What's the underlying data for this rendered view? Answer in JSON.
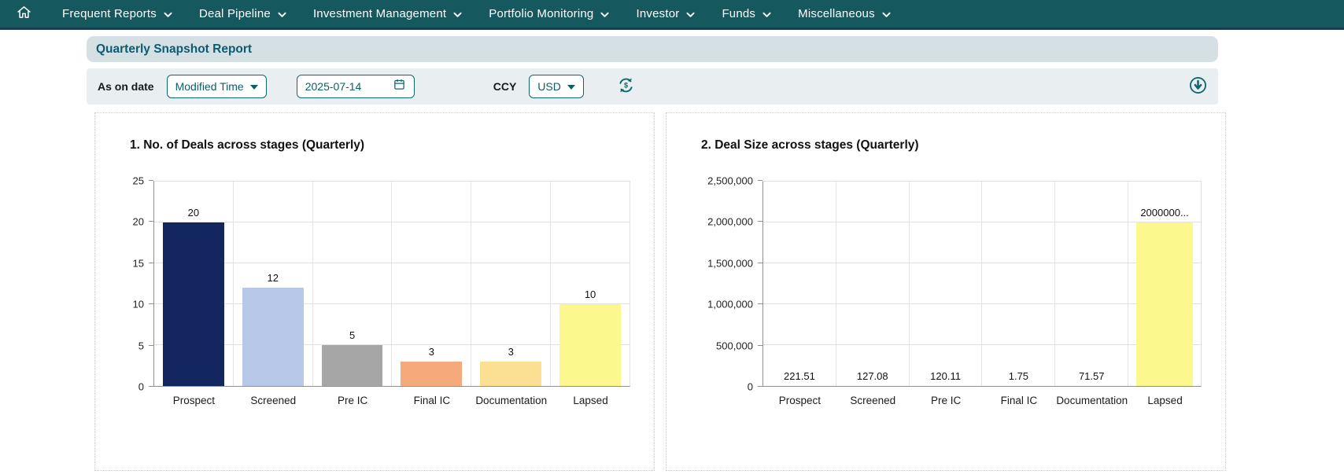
{
  "nav": {
    "items": [
      "Frequent Reports",
      "Deal Pipeline",
      "Investment Management",
      "Portfolio Monitoring",
      "Investor",
      "Funds",
      "Miscellaneous"
    ]
  },
  "header": {
    "title": "Quarterly Snapshot Report"
  },
  "filters": {
    "as_on_date_label": "As on date",
    "date_type_value": "Modified Time",
    "date_value": "2025-07-14",
    "ccy_label": "CCY",
    "ccy_value": "USD"
  },
  "icons": {
    "home": "home-icon",
    "nav_caret": "chevron-down-icon",
    "select_caret": "caret-down-icon",
    "calendar": "calendar-icon",
    "refresh": "currency-refresh-icon",
    "download": "download-icon"
  },
  "colors": {
    "nav_bg": "#15595E",
    "nav_bottom_edge": "#173A5C",
    "accent_teal": "#0E676C",
    "title_text": "#0C5B72",
    "title_band_bg": "#D5E0E4",
    "filter_bar_bg": "#E9EEF1"
  },
  "chart_data": [
    {
      "type": "bar",
      "title": "1. No. of Deals across stages (Quarterly)",
      "categories": [
        "Prospect",
        "Screened",
        "Pre IC",
        "Final IC",
        "Documentation",
        "Lapsed"
      ],
      "values": [
        20,
        12,
        5,
        3,
        3,
        10
      ],
      "labels": [
        "20",
        "12",
        "5",
        "3",
        "3",
        "10"
      ],
      "bar_colors": [
        "#13265F",
        "#B7C8E9",
        "#A6A6A6",
        "#F4AA7B",
        "#FBDF92",
        "#FBF98D"
      ],
      "xlabel": "",
      "ylabel": "",
      "ylim": [
        0,
        25
      ],
      "grid": true,
      "legend": "none",
      "yticks": [
        {
          "value": 0,
          "label": "0"
        },
        {
          "value": 5,
          "label": "5"
        },
        {
          "value": 10,
          "label": "10"
        },
        {
          "value": 15,
          "label": "15"
        },
        {
          "value": 20,
          "label": "20"
        },
        {
          "value": 25,
          "label": "25"
        }
      ]
    },
    {
      "type": "bar",
      "title": "2. Deal Size across stages (Quarterly)",
      "categories": [
        "Prospect",
        "Screened",
        "Pre IC",
        "Final IC",
        "Documentation",
        "Lapsed"
      ],
      "values": [
        221.51,
        127.08,
        120.11,
        1.75,
        71.57,
        2000000
      ],
      "labels": [
        "221.51",
        "127.08",
        "120.11",
        "1.75",
        "71.57",
        "2000000..."
      ],
      "bar_colors": [
        "#13265F",
        "#B7C8E9",
        "#A6A6A6",
        "#F4AA7B",
        "#FBDF92",
        "#FBF98D"
      ],
      "xlabel": "",
      "ylabel": "",
      "ylim": [
        0,
        2500000
      ],
      "grid": true,
      "legend": "none",
      "yticks": [
        {
          "value": 0,
          "label": "0"
        },
        {
          "value": 500000,
          "label": "500,000"
        },
        {
          "value": 1000000,
          "label": "1,000,000"
        },
        {
          "value": 1500000,
          "label": "1,500,000"
        },
        {
          "value": 2000000,
          "label": "2,000,000"
        },
        {
          "value": 2500000,
          "label": "2,500,000"
        }
      ]
    }
  ]
}
